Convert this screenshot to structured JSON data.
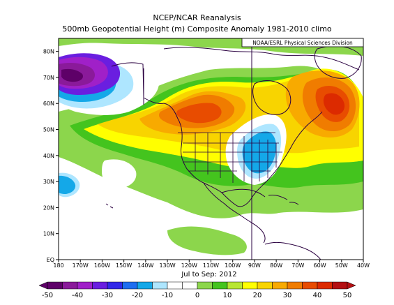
{
  "header": {
    "title": "NCEP/NCAR Reanalysis",
    "subtitle": "500mb Geopotential Height (m) Composite Anomaly 1981-2010 climo"
  },
  "credit": "NOAA/ESRL Physical Sciences Division",
  "period": "Jul to Sep: 2012",
  "map": {
    "lon_range": [
      -180,
      -40
    ],
    "lat_range": [
      0,
      85
    ],
    "lat_labels": [
      "EQ",
      "10N",
      "20N",
      "30N",
      "40N",
      "50N",
      "60N",
      "70N",
      "80N"
    ],
    "lon_labels": [
      "180",
      "170W",
      "160W",
      "150W",
      "140W",
      "130W",
      "120W",
      "110W",
      "100W",
      "90W",
      "80W",
      "70W",
      "60W",
      "50W",
      "40W"
    ]
  },
  "colorbar": {
    "min": -50,
    "max": 50,
    "step": 5,
    "labels": [
      "-50",
      "-40",
      "-30",
      "-20",
      "-10",
      "0",
      "10",
      "20",
      "30",
      "40",
      "50"
    ],
    "colors": [
      "#5e0068",
      "#8a1a9a",
      "#a020c8",
      "#6a1ee0",
      "#3228e8",
      "#1e6ef0",
      "#14a8e8",
      "#aee6ff",
      "#ffffff",
      "#ffffff",
      "#8cd64c",
      "#44c41e",
      "#b8e632",
      "#ffff00",
      "#f8d400",
      "#f8aa00",
      "#f07c00",
      "#e84c00",
      "#dc2a00",
      "#b40f12"
    ]
  }
}
